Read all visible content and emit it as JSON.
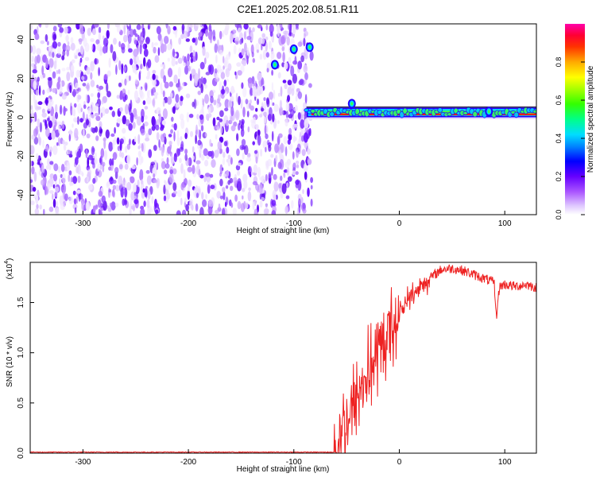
{
  "title": "C2E1.2025.202.08.51.R11",
  "chart_data": [
    {
      "type": "heatmap",
      "xlabel": "Height of straight line (km)",
      "ylabel": "Frequency (Hz)",
      "xlim": [
        -350,
        130
      ],
      "ylim": [
        -50,
        48
      ],
      "xticks": [
        -300,
        -200,
        -100,
        0,
        100
      ],
      "yticks": [
        -40,
        -20,
        0,
        20,
        40
      ],
      "colorbar": {
        "label": "Normalized spectral amplitude",
        "range": [
          0,
          1
        ],
        "ticks": [
          "0.0",
          "0.2",
          "0.4",
          "0.6",
          "0.8"
        ],
        "tick_values": [
          0,
          0.2,
          0.4,
          0.6,
          0.8
        ],
        "colors": [
          "#ffffff",
          "#e6ccff",
          "#aa55ff",
          "#6600ff",
          "#0000ff",
          "#00ccff",
          "#00ff66",
          "#66ff00",
          "#ffff00",
          "#ff8800",
          "#ff0000",
          "#ff00cc"
        ]
      },
      "features": {
        "noise_region_x": [
          -350,
          -83
        ],
        "signal_band_x": [
          -88,
          130
        ],
        "signal_band_freq_hz": [
          0,
          5
        ],
        "signal_band_core_freq_hz": 1.5,
        "signal_peaks": [
          {
            "x": -85,
            "freq": 36
          },
          {
            "x": -100,
            "freq": 35
          },
          {
            "x": -118,
            "freq": 27
          },
          {
            "x": -45,
            "freq": 7
          },
          {
            "x": 85,
            "freq": 3
          }
        ]
      },
      "grid": false
    },
    {
      "type": "line",
      "xlabel": "Height of straight line (km)",
      "ylabel": "SNR (10 * v/v)",
      "y_multiplier_label": "(x10",
      "y_multiplier_exp": "4",
      "y_multiplier_close": ")",
      "xlim": [
        -350,
        130
      ],
      "ylim": [
        0,
        1.9
      ],
      "xticks": [
        -300,
        -200,
        -100,
        0,
        100
      ],
      "yticks": [
        "0.0",
        "0.5",
        "1.0",
        "1.5"
      ],
      "ytick_values": [
        0,
        0.5,
        1.0,
        1.5
      ],
      "color": "#ee2222",
      "series_anchors": {
        "x": [
          -350,
          -62,
          -58,
          -50,
          -40,
          -30,
          -20,
          -10,
          0,
          10,
          20,
          30,
          40,
          50,
          60,
          70,
          80,
          90,
          92,
          95,
          100,
          110,
          120,
          130
        ],
        "y": [
          0.01,
          0.01,
          0.12,
          0.32,
          0.55,
          0.8,
          0.95,
          1.2,
          1.4,
          1.55,
          1.65,
          1.75,
          1.83,
          1.84,
          1.82,
          1.78,
          1.74,
          1.7,
          1.35,
          1.66,
          1.68,
          1.66,
          1.68,
          1.65
        ]
      },
      "noise_amplitude_max": 0.55,
      "grid": false
    }
  ]
}
